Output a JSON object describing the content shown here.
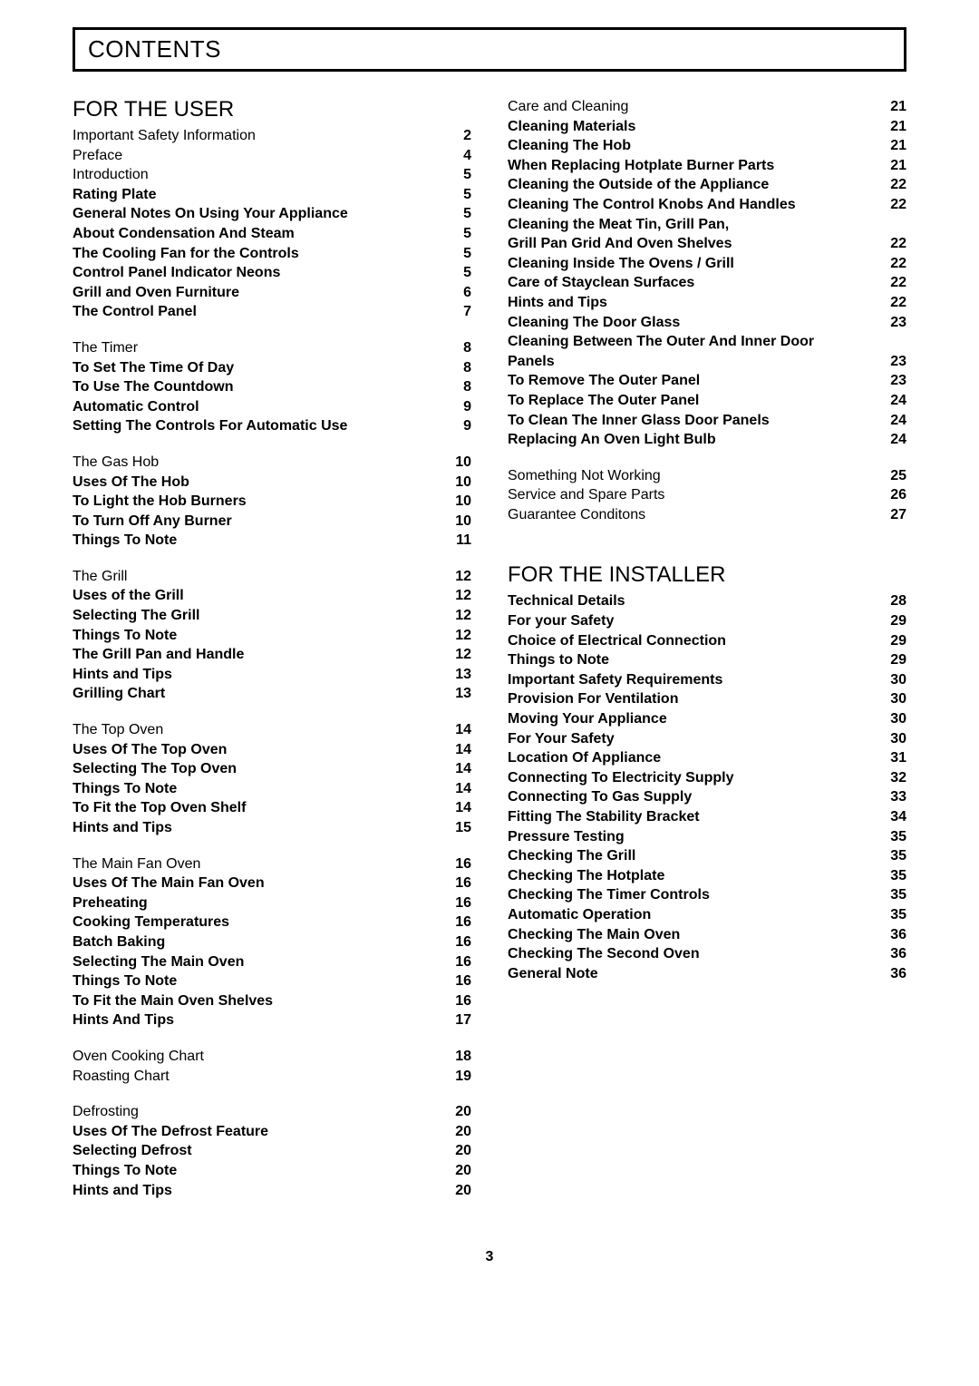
{
  "page_title": "CONTENTS",
  "page_number": "3",
  "user_section_title": "FOR THE USER",
  "installer_section_title": "FOR THE INSTALLER",
  "left": [
    {
      "group": [
        {
          "label": "Important Safety Information",
          "page": "2"
        },
        {
          "label": "Preface",
          "page": "4"
        },
        {
          "label": "Introduction",
          "page": "5"
        },
        {
          "label": "Rating Plate",
          "page": "5",
          "bold": true
        },
        {
          "label": "General Notes On Using Your Appliance",
          "page": "5",
          "bold": true,
          "indent": true
        },
        {
          "label": "About Condensation And Steam",
          "page": "5",
          "bold": true,
          "indent": true
        },
        {
          "label": "The Cooling Fan for the Controls",
          "page": "5",
          "bold": true,
          "indent": true
        },
        {
          "label": "Control Panel Indicator Neons",
          "page": "5",
          "bold": true,
          "indent": true
        },
        {
          "label": "Grill and Oven Furniture",
          "page": "6",
          "bold": true,
          "indent": true
        },
        {
          "label": "The Control Panel",
          "page": "7",
          "bold": true,
          "indent": true
        }
      ]
    },
    {
      "group": [
        {
          "label": "The Timer",
          "page": "8"
        },
        {
          "label": "To Set The Time Of Day",
          "page": "8",
          "bold": true,
          "indent": true
        },
        {
          "label": "To Use The Countdown",
          "page": "8",
          "bold": true,
          "indent": true
        },
        {
          "label": "Automatic Control",
          "page": "9",
          "bold": true,
          "indent": true
        },
        {
          "label": "Setting The Controls For Automatic Use",
          "page": "9",
          "bold": true,
          "indent": true
        }
      ]
    },
    {
      "group": [
        {
          "label": "The Gas Hob",
          "page": "10"
        },
        {
          "label": "Uses Of The Hob",
          "page": "10",
          "bold": true
        },
        {
          "label": "To Light the Hob Burners",
          "page": "10",
          "bold": true,
          "indent": true
        },
        {
          "label": "To Turn Off Any Burner",
          "page": "10",
          "bold": true,
          "indent": true
        },
        {
          "label": "Things To Note",
          "page": "11",
          "bold": true
        }
      ]
    },
    {
      "group": [
        {
          "label": "The Grill",
          "page": "12"
        },
        {
          "label": "Uses of the Grill",
          "page": "12",
          "bold": true
        },
        {
          "label": "Selecting The Grill",
          "page": "12",
          "bold": true
        },
        {
          "label": "Things To Note",
          "page": "12",
          "bold": true
        },
        {
          "label": "The Grill Pan and Handle",
          "page": "12",
          "bold": true
        },
        {
          "label": "Hints and Tips",
          "page": "13",
          "bold": true
        },
        {
          "label": "Grilling Chart",
          "page": "13",
          "bold": true
        }
      ]
    },
    {
      "group": [
        {
          "label": "The Top Oven",
          "page": "14"
        },
        {
          "label": "Uses Of The Top Oven",
          "page": "14",
          "bold": true
        },
        {
          "label": "Selecting The Top Oven",
          "page": "14",
          "bold": true
        },
        {
          "label": "Things To Note",
          "page": "14",
          "bold": true
        },
        {
          "label": "To Fit the Top Oven Shelf",
          "page": "14",
          "bold": true
        },
        {
          "label": "Hints and Tips",
          "page": "15",
          "bold": true
        }
      ]
    },
    {
      "group": [
        {
          "label": "The Main Fan Oven",
          "page": "16"
        },
        {
          "label": "Uses Of The Main Fan Oven",
          "page": "16",
          "bold": true
        },
        {
          "label": "Preheating",
          "page": "16",
          "bold": true
        },
        {
          "label": "Cooking Temperatures",
          "page": "16",
          "bold": true,
          "indent": true
        },
        {
          "label": "Batch Baking",
          "page": "16",
          "bold": true
        },
        {
          "label": "Selecting The Main Oven",
          "page": "16",
          "bold": true
        },
        {
          "label": "Things To Note",
          "page": "16",
          "bold": true
        },
        {
          "label": "To Fit the Main Oven Shelves",
          "page": "16",
          "bold": true
        },
        {
          "label": "Hints And Tips",
          "page": "17",
          "bold": true
        }
      ]
    },
    {
      "group": [
        {
          "label": "Oven Cooking Chart",
          "page": "18"
        },
        {
          "label": "Roasting Chart",
          "page": "19"
        }
      ]
    },
    {
      "group": [
        {
          "label": "Defrosting",
          "page": "20"
        },
        {
          "label": "Uses Of The Defrost Feature",
          "page": "20",
          "bold": true,
          "indent": true
        },
        {
          "label": "Selecting Defrost",
          "page": "20",
          "bold": true
        },
        {
          "label": "Things To Note",
          "page": "20",
          "bold": true
        },
        {
          "label": "Hints and Tips",
          "page": "20",
          "bold": true
        }
      ]
    }
  ],
  "right_user": [
    {
      "group": [
        {
          "label": "Care and Cleaning",
          "page": "21"
        },
        {
          "label": "Cleaning Materials",
          "page": "21",
          "bold": true,
          "indent": true
        },
        {
          "label": "Cleaning The Hob",
          "page": "21",
          "bold": true
        },
        {
          "label": "When Replacing Hotplate Burner Parts",
          "page": "21",
          "bold": true,
          "indent": true
        },
        {
          "label": "Cleaning the Outside of the Appliance",
          "page": "22",
          "bold": true,
          "indent": true
        },
        {
          "label": "Cleaning The Control Knobs And Handles",
          "page": "22",
          "bold": true,
          "indent": true
        },
        {
          "label": "Cleaning the Meat Tin, Grill Pan,",
          "page": "",
          "bold": true
        },
        {
          "label": "Grill Pan Grid And Oven Shelves",
          "page": "22",
          "bold": true,
          "indent": true
        },
        {
          "label": "Cleaning Inside The Ovens / Grill",
          "page": "22",
          "bold": true,
          "indent": true
        },
        {
          "label": "Care of Stayclean Surfaces",
          "page": "22",
          "bold": true
        },
        {
          "label": "Hints and Tips",
          "page": "22",
          "bold": true
        },
        {
          "label": "Cleaning The Door Glass",
          "page": "23",
          "bold": true,
          "indent": true
        },
        {
          "label": "Cleaning Between The Outer And Inner Door",
          "page": "",
          "bold": true
        },
        {
          "label": "Panels",
          "page": "23",
          "bold": true
        },
        {
          "label": "To Remove The Outer Panel",
          "page": "23",
          "bold": true,
          "indent": true
        },
        {
          "label": "To Replace The Outer Panel",
          "page": "24",
          "bold": true
        },
        {
          "label": "To Clean The Inner Glass Door Panels",
          "page": "24",
          "bold": true,
          "indent": true
        },
        {
          "label": "Replacing An Oven Light Bulb",
          "page": "24",
          "bold": true,
          "indent": true
        }
      ]
    },
    {
      "group": [
        {
          "label": "Something Not Working",
          "page": "25"
        },
        {
          "label": "Service and Spare Parts",
          "page": "26"
        },
        {
          "label": "Guarantee Conditons",
          "page": "27"
        }
      ]
    }
  ],
  "right_installer": [
    {
      "group": [
        {
          "label": "Technical Details",
          "page": "28",
          "bold": true
        },
        {
          "label": "For your Safety",
          "page": "29",
          "bold": true
        },
        {
          "label": "Choice of Electrical Connection",
          "page": "29",
          "bold": true,
          "indent": true
        },
        {
          "label": "Things to Note",
          "page": "29",
          "bold": true
        },
        {
          "label": "Important Safety Requirements",
          "page": "30",
          "bold": true,
          "indent": true
        },
        {
          "label": "Provision For Ventilation",
          "page": "30",
          "bold": true,
          "indent": true
        },
        {
          "label": "Moving Your Appliance",
          "page": "30",
          "bold": true,
          "indent": true
        },
        {
          "label": "For Your Safety",
          "page": "30",
          "bold": true
        },
        {
          "label": "Location Of Appliance",
          "page": "31",
          "bold": true,
          "indent": true
        },
        {
          "label": "Connecting To Electricity Supply",
          "page": "32",
          "bold": true,
          "indent": true
        },
        {
          "label": "Connecting To Gas Supply",
          "page": "33",
          "bold": true,
          "indent": true
        },
        {
          "label": "Fitting The Stability Bracket",
          "page": "34",
          "bold": true,
          "indent": true
        },
        {
          "label": "Pressure Testing",
          "page": "35",
          "bold": true
        },
        {
          "label": "Checking The Grill",
          "page": "35",
          "bold": true
        },
        {
          "label": "Checking The Hotplate",
          "page": "35",
          "bold": true
        },
        {
          "label": "Checking The Timer Controls",
          "page": "35",
          "bold": true,
          "indent": true
        },
        {
          "label": "Automatic Operation",
          "page": "35",
          "bold": true
        },
        {
          "label": "Checking The Main Oven",
          "page": "36",
          "bold": true
        },
        {
          "label": "Checking The Second Oven",
          "page": "36",
          "bold": true
        },
        {
          "label": "General Note",
          "page": "36",
          "bold": true
        }
      ]
    }
  ]
}
